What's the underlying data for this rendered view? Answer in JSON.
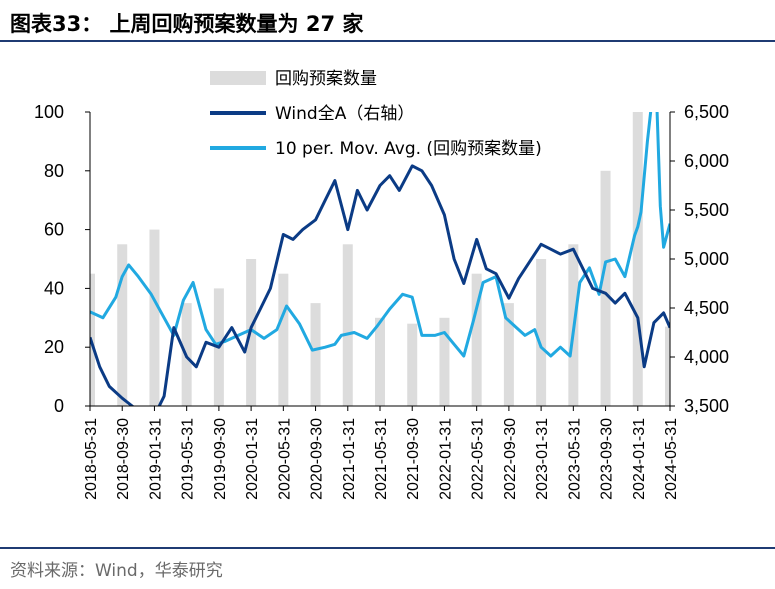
{
  "header": {
    "title": "图表33： 上周回购预案数量为 27 家"
  },
  "footer": {
    "source": "资料来源：Wind，华泰研究"
  },
  "colors": {
    "accent": "#1f3b73",
    "wind_a": "#0b3b85",
    "mov_avg": "#21a9e1",
    "count_bars": "#dcdcdc"
  },
  "chart_data": {
    "type": "bar",
    "title": "",
    "x_tick_labels": [
      "2018-05-31",
      "2018-09-30",
      "2019-01-31",
      "2019-05-31",
      "2019-09-30",
      "2020-01-31",
      "2020-05-31",
      "2020-09-30",
      "2021-01-31",
      "2021-05-31",
      "2021-09-30",
      "2022-01-31",
      "2022-05-31",
      "2022-09-30",
      "2023-01-31",
      "2023-05-31",
      "2023-09-30",
      "2024-01-31",
      "2024-05-31"
    ],
    "left_axis": {
      "ylim": [
        0,
        100
      ],
      "ticks": [
        "0",
        "20",
        "40",
        "60",
        "80",
        "100"
      ]
    },
    "right_axis": {
      "ylim": [
        3500,
        6500
      ],
      "ticks": [
        "3,500",
        "4,000",
        "4,500",
        "5,000",
        "5,500",
        "6,000",
        "6,500"
      ]
    },
    "legend_position": "top-center",
    "series": [
      {
        "name": "回购预案数量",
        "type": "bar",
        "axis": "left",
        "x": [
          0,
          1,
          2,
          3,
          4,
          5,
          6,
          7,
          8,
          9,
          10,
          11,
          12,
          13,
          14,
          15,
          16,
          17,
          18
        ],
        "values": [
          45,
          55,
          60,
          35,
          40,
          50,
          45,
          35,
          55,
          30,
          28,
          30,
          45,
          35,
          50,
          55,
          80,
          100,
          27
        ]
      },
      {
        "name": "Wind全A（右轴）",
        "type": "line",
        "axis": "right",
        "x": [
          0,
          0.3,
          0.6,
          1,
          1.5,
          2,
          2.3,
          2.6,
          3,
          3.3,
          3.6,
          4,
          4.4,
          4.8,
          5,
          5.3,
          5.6,
          6,
          6.3,
          6.6,
          7,
          7.3,
          7.6,
          8,
          8.3,
          8.6,
          9,
          9.3,
          9.6,
          10,
          10.3,
          10.6,
          11,
          11.3,
          11.6,
          12,
          12.3,
          12.6,
          13,
          13.3,
          13.6,
          14,
          14.3,
          14.6,
          15,
          15.3,
          15.6,
          16,
          16.3,
          16.6,
          17,
          17.2,
          17.5,
          17.8,
          18
        ],
        "values": [
          4200,
          3900,
          3700,
          3580,
          3450,
          3400,
          3600,
          4300,
          4000,
          3900,
          4150,
          4100,
          4300,
          4050,
          4300,
          4500,
          4700,
          5250,
          5200,
          5300,
          5400,
          5600,
          5800,
          5300,
          5700,
          5500,
          5750,
          5850,
          5700,
          5950,
          5900,
          5750,
          5450,
          5000,
          4750,
          5200,
          4900,
          4850,
          4600,
          4800,
          4950,
          5150,
          5100,
          5050,
          5100,
          4900,
          4700,
          4650,
          4550,
          4650,
          4400,
          3900,
          4350,
          4450,
          4300
        ]
      },
      {
        "name": "10 per. Mov. Avg. (回购预案数量)",
        "type": "line",
        "axis": "left",
        "x": [
          0,
          0.4,
          0.8,
          1,
          1.2,
          1.5,
          1.9,
          2.3,
          2.6,
          2.9,
          3.2,
          3.6,
          3.9,
          4.2,
          4.6,
          5,
          5.4,
          5.8,
          6.1,
          6.5,
          6.9,
          7.3,
          7.6,
          7.8,
          8.2,
          8.6,
          8.9,
          9.3,
          9.7,
          10,
          10.3,
          10.7,
          11,
          11.3,
          11.6,
          11.9,
          12.2,
          12.6,
          12.9,
          13.2,
          13.5,
          13.8,
          14,
          14.3,
          14.6,
          14.9,
          15.2,
          15.5,
          15.8,
          16,
          16.3,
          16.6,
          16.9,
          17,
          17.1,
          17.3,
          17.5,
          17.6,
          17.7,
          17.8,
          18
        ],
        "values": [
          32,
          30,
          37,
          44,
          48,
          44,
          38,
          30,
          24,
          36,
          42,
          26,
          21,
          22,
          24,
          26,
          23,
          26,
          34,
          28,
          19,
          20,
          21,
          24,
          25,
          23,
          27,
          33,
          38,
          37,
          24,
          24,
          25,
          21,
          17,
          29,
          42,
          44,
          30,
          27,
          24,
          26,
          20,
          17,
          20,
          17,
          42,
          47,
          38,
          49,
          50,
          44,
          58,
          61,
          66,
          90,
          110,
          100,
          68,
          54,
          62
        ]
      }
    ]
  }
}
